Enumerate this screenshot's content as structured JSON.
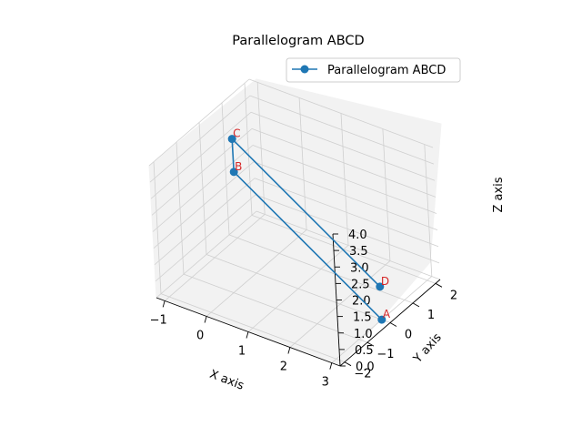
{
  "chart_data": {
    "type": "line3d",
    "title": "Parallelogram ABCD",
    "xlabel": "X axis",
    "ylabel": "Y axis",
    "zlabel": "Z axis",
    "xlim": [
      -1.2,
      3.2
    ],
    "ylim": [
      -2.2,
      2.2
    ],
    "zlim": [
      0,
      4
    ],
    "xticks": [
      "−1",
      "0",
      "1",
      "2",
      "3"
    ],
    "yticks": [
      "−2",
      "−1",
      "0",
      "1",
      "2"
    ],
    "zticks": [
      "0.0",
      "0.5",
      "1.0",
      "1.5",
      "2.0",
      "2.5",
      "3.0",
      "3.5",
      "4.0"
    ],
    "grid": true,
    "legend": {
      "position": "top-right",
      "entries": [
        "Parallelogram ABCD"
      ]
    },
    "series": [
      {
        "name": "Parallelogram ABCD",
        "color": "#1f77b4",
        "points": [
          {
            "label": "A",
            "x": 3,
            "y": 0,
            "z": 0
          },
          {
            "label": "B",
            "x": -1,
            "y": 1,
            "z": 2
          },
          {
            "label": "C",
            "x": -1,
            "y": 1,
            "z": 3
          },
          {
            "label": "D",
            "x": 3,
            "y": 0,
            "z": 1
          }
        ]
      }
    ],
    "label_color": "#d62728"
  }
}
